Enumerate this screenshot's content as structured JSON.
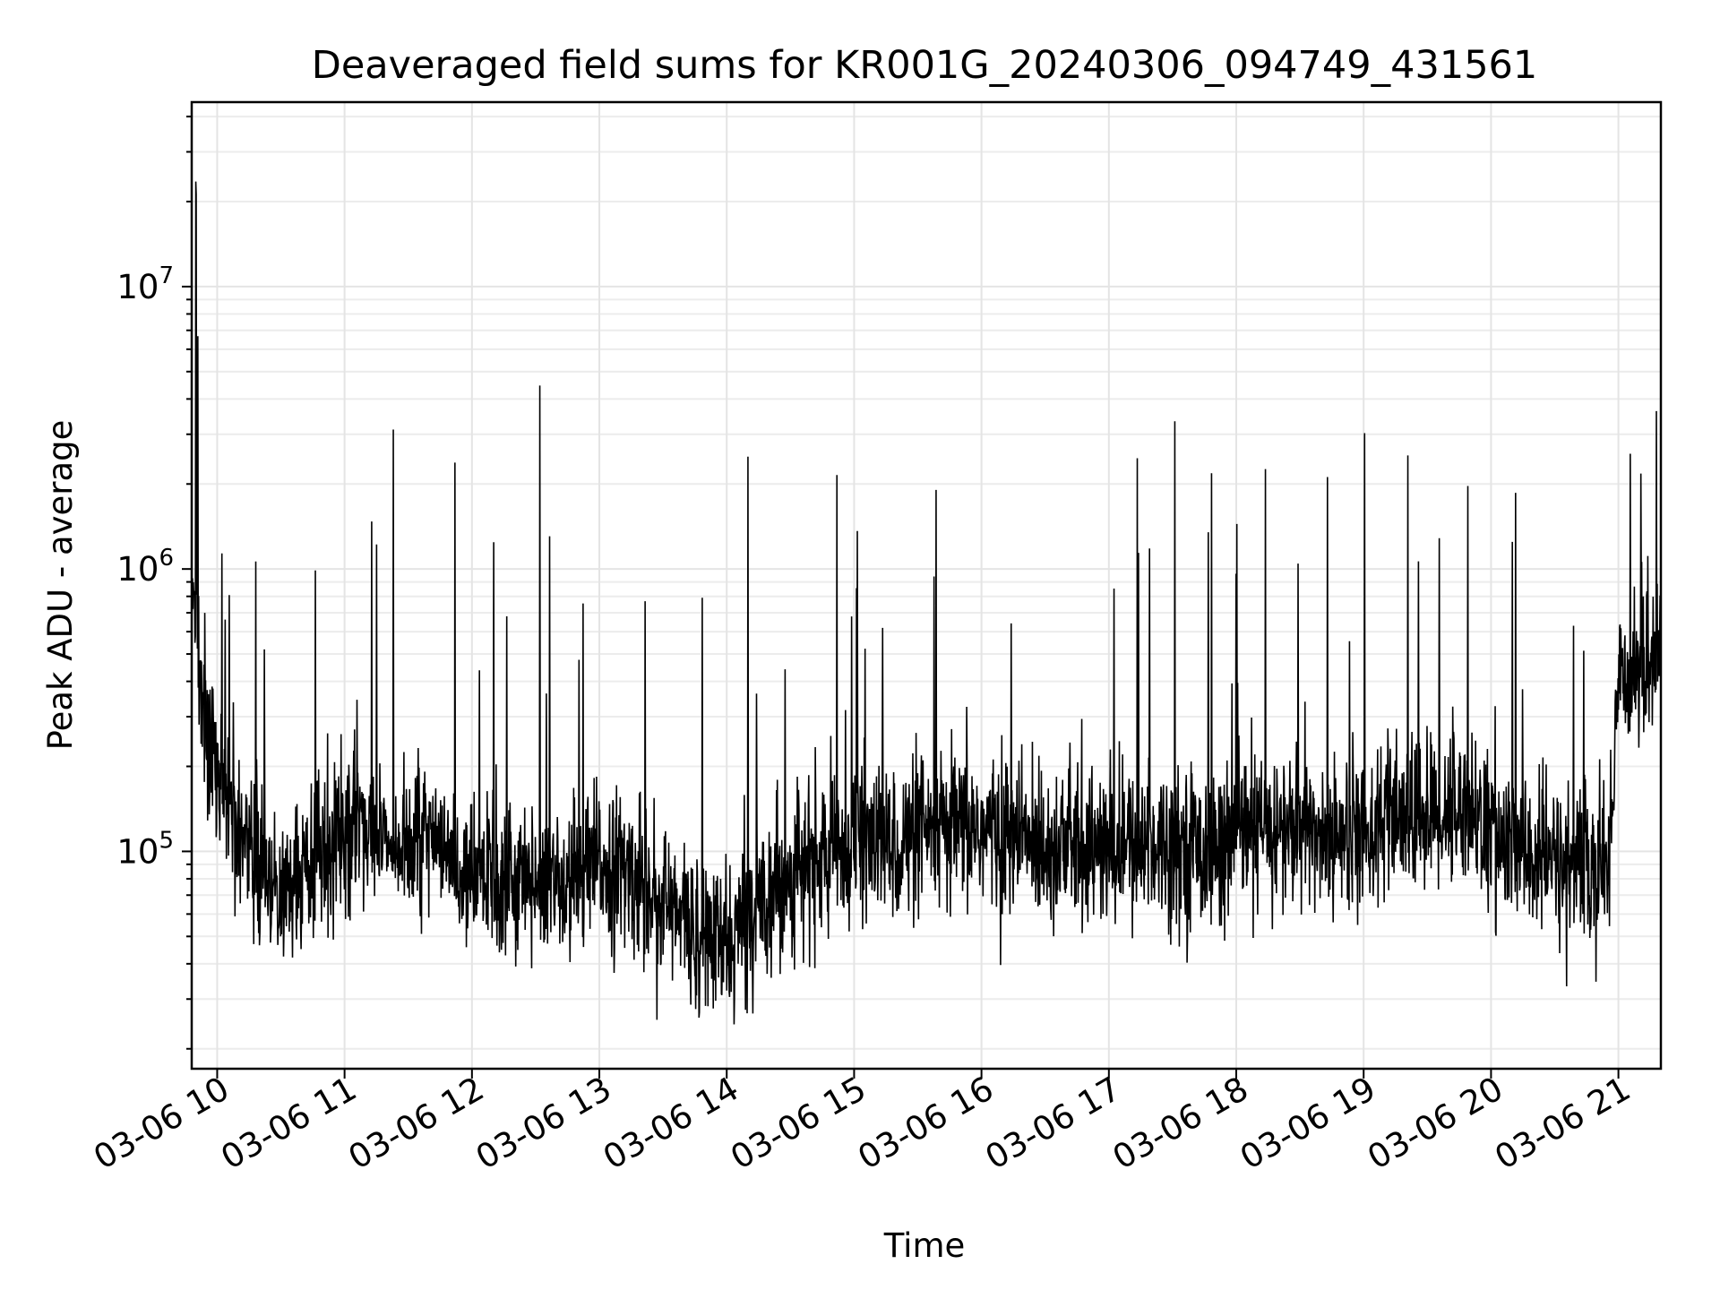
{
  "chart_data": {
    "type": "line",
    "title": "Deaveraged field sums for KR001G_20240306_094749_431561",
    "xlabel": "Time",
    "ylabel": "Peak ADU - average",
    "yscale": "log",
    "grid": true,
    "line_color": "#000000",
    "xlim": [
      "2024-03-06 09:48",
      "2024-03-06 21:20"
    ],
    "ylim": [
      17000,
      45000000
    ],
    "x_ticks": [
      "03-06 10",
      "03-06 11",
      "03-06 12",
      "03-06 13",
      "03-06 14",
      "03-06 15",
      "03-06 16",
      "03-06 17",
      "03-06 18",
      "03-06 19",
      "03-06 20",
      "03-06 21"
    ],
    "y_ticks": [
      {
        "base": "10",
        "exp": "5",
        "value": 100000
      },
      {
        "base": "10",
        "exp": "6",
        "value": 1000000
      },
      {
        "base": "10",
        "exp": "7",
        "value": 10000000
      }
    ],
    "series": [
      {
        "x": [
          "2024-03-06 09:48",
          "2024-03-06 09:50",
          "2024-03-06 09:52",
          "2024-03-06 09:55",
          "2024-03-06 10:00",
          "2024-03-06 10:10",
          "2024-03-06 10:20",
          "2024-03-06 10:30",
          "2024-03-06 10:40",
          "2024-03-06 10:50",
          "2024-03-06 11:00",
          "2024-03-06 11:15",
          "2024-03-06 11:30",
          "2024-03-06 11:45",
          "2024-03-06 11:52",
          "2024-03-06 12:00",
          "2024-03-06 12:15",
          "2024-03-06 12:32",
          "2024-03-06 12:45",
          "2024-03-06 13:00",
          "2024-03-06 13:20",
          "2024-03-06 13:35",
          "2024-03-06 13:50",
          "2024-03-06 14:00",
          "2024-03-06 14:10",
          "2024-03-06 14:20",
          "2024-03-06 14:40",
          "2024-03-06 15:00",
          "2024-03-06 15:20",
          "2024-03-06 15:40",
          "2024-03-06 16:00",
          "2024-03-06 16:20",
          "2024-03-06 16:40",
          "2024-03-06 17:00",
          "2024-03-06 17:14",
          "2024-03-06 17:30",
          "2024-03-06 17:50",
          "2024-03-06 18:00",
          "2024-03-06 18:20",
          "2024-03-06 18:40",
          "2024-03-06 19:00",
          "2024-03-06 19:20",
          "2024-03-06 19:40",
          "2024-03-06 19:50",
          "2024-03-06 20:00",
          "2024-03-06 20:20",
          "2024-03-06 20:40",
          "2024-03-06 20:55",
          "2024-03-06 21:00",
          "2024-03-06 21:10",
          "2024-03-06 21:20"
        ],
        "y": [
          800000,
          27000000,
          400000,
          260000,
          220000,
          120000,
          90000,
          70000,
          85000,
          110000,
          130000,
          120000,
          110000,
          100000,
          2400000,
          80000,
          85000,
          4500000,
          75000,
          90000,
          80000,
          60000,
          50000,
          45000,
          2500000,
          75000,
          90000,
          110000,
          105000,
          115000,
          120000,
          110000,
          105000,
          100000,
          1150000,
          110000,
          100000,
          115000,
          120000,
          115000,
          120000,
          130000,
          140000,
          150000,
          110000,
          95000,
          90000,
          85000,
          420000,
          450000,
          500000
        ]
      }
    ]
  }
}
